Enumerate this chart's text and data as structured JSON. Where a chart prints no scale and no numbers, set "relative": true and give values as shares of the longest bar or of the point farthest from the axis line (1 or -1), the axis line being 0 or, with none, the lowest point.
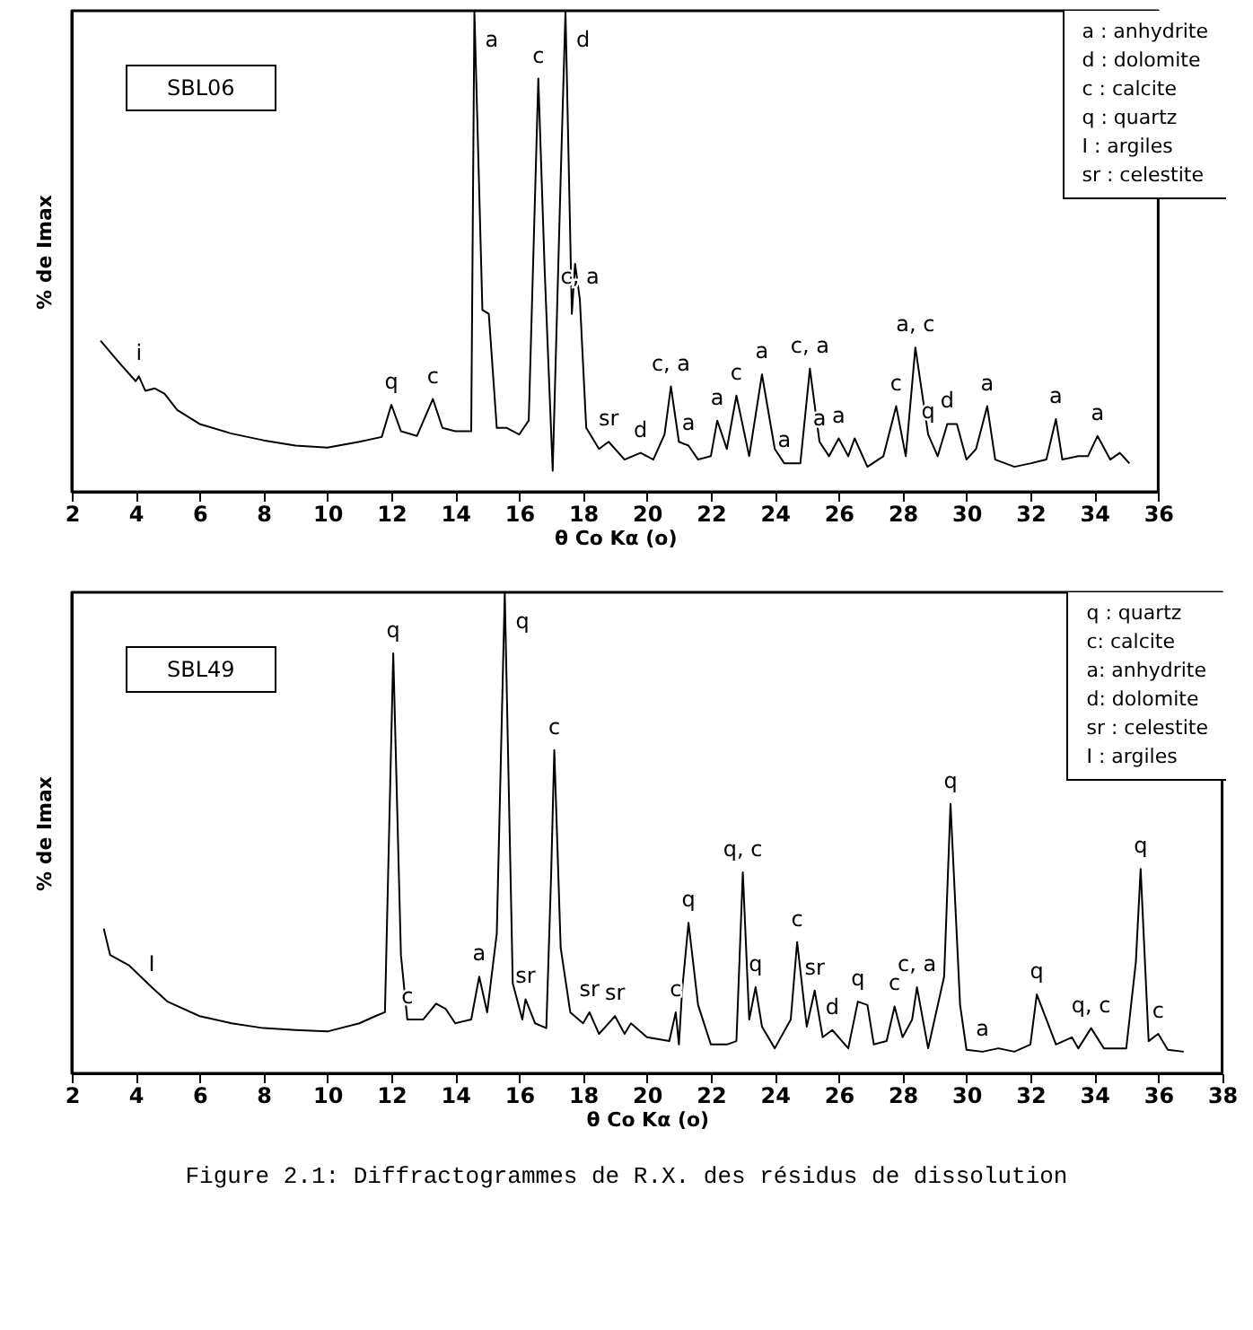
{
  "chart_data": [
    {
      "type": "line",
      "title": "SBL06",
      "xlabel": "θ Co Kα (o)",
      "ylabel": "% de Imax",
      "relative": true,
      "xlim": [
        2,
        36
      ],
      "xticks": [
        2,
        4,
        6,
        8,
        10,
        12,
        14,
        16,
        18,
        20,
        22,
        24,
        26,
        28,
        30,
        32,
        34,
        36
      ],
      "x": [
        2.9,
        3.5,
        4.0,
        4.1,
        4.3,
        4.6,
        4.9,
        5.3,
        6,
        7,
        8,
        9,
        10,
        11,
        11.7,
        12.0,
        12.3,
        12.8,
        13.3,
        13.6,
        14.0,
        14.5,
        14.6,
        14.85,
        15.05,
        15.3,
        15.6,
        16.0,
        16.3,
        16.6,
        16.8,
        17.05,
        17.3,
        17.45,
        17.65,
        17.75,
        17.9,
        18.1,
        18.5,
        18.8,
        19.3,
        19.8,
        20.2,
        20.55,
        20.75,
        21.0,
        21.3,
        21.6,
        22.0,
        22.2,
        22.5,
        22.8,
        23.2,
        23.6,
        24.0,
        24.3,
        24.8,
        25.1,
        25.4,
        25.7,
        26.0,
        26.3,
        26.5,
        26.9,
        27.4,
        27.8,
        28.1,
        28.4,
        28.8,
        29.1,
        29.4,
        29.7,
        30.0,
        30.3,
        30.65,
        30.9,
        31.5,
        32.0,
        32.5,
        32.8,
        33.0,
        33.5,
        33.8,
        34.1,
        34.5,
        34.8,
        35.1
      ],
      "series": [
        {
          "color": "#000000",
          "values": [
            0.314,
            0.267,
            0.23,
            0.24,
            0.21,
            0.215,
            0.204,
            0.17,
            0.141,
            0.121,
            0.107,
            0.096,
            0.092,
            0.104,
            0.114,
            0.181,
            0.126,
            0.116,
            0.193,
            0.133,
            0.126,
            0.126,
            1,
            0.378,
            0.37,
            0.133,
            0.133,
            0.119,
            0.148,
            0.859,
            0.459,
            0.044,
            0.652,
            1,
            0.37,
            0.474,
            0.4,
            0.133,
            0.089,
            0.104,
            0.067,
            0.081,
            0.067,
            0.119,
            0.219,
            0.104,
            0.096,
            0.067,
            0.074,
            0.148,
            0.089,
            0.2,
            0.074,
            0.244,
            0.089,
            0.059,
            0.059,
            0.256,
            0.104,
            0.074,
            0.111,
            0.074,
            0.111,
            0.052,
            0.074,
            0.178,
            0.074,
            0.3,
            0.119,
            0.074,
            0.141,
            0.141,
            0.067,
            0.089,
            0.178,
            0.067,
            0.052,
            0.059,
            0.067,
            0.151,
            0.067,
            0.074,
            0.074,
            0.116,
            0.067,
            0.081,
            0.059
          ]
        }
      ],
      "annotations": [
        "a : anhydrite\nd : dolomite\nc : calcite\nq : quartz\nI : argiles\nsr : celestite",
        {
          "text": "i",
          "x": 4.1,
          "y": 0.24
        },
        {
          "text": "q",
          "x": 12.0,
          "y": 0.181
        },
        {
          "text": "c",
          "x": 13.3,
          "y": 0.193
        },
        {
          "text": "a",
          "x": 14.6,
          "y": 1
        },
        {
          "text": "c",
          "x": 16.6,
          "y": 0.859
        },
        {
          "text": "d",
          "x": 17.45,
          "y": 1
        },
        {
          "text": "c, a",
          "x": 17.9,
          "y": 0.4
        },
        {
          "text": "sr",
          "x": 18.8,
          "y": 0.104
        },
        {
          "text": "d",
          "x": 19.8,
          "y": 0.081
        },
        {
          "text": "c, a",
          "x": 20.75,
          "y": 0.219
        },
        {
          "text": "a",
          "x": 21.3,
          "y": 0.096
        },
        {
          "text": "a",
          "x": 22.2,
          "y": 0.148
        },
        {
          "text": "c",
          "x": 22.8,
          "y": 0.2
        },
        {
          "text": "a",
          "x": 23.6,
          "y": 0.244
        },
        {
          "text": "a",
          "x": 24.3,
          "y": 0.059
        },
        {
          "text": "c, a",
          "x": 25.1,
          "y": 0.256
        },
        {
          "text": "a",
          "x": 25.4,
          "y": 0.104
        },
        {
          "text": "a",
          "x": 26.0,
          "y": 0.111
        },
        {
          "text": "c",
          "x": 27.8,
          "y": 0.178
        },
        {
          "text": "a, c",
          "x": 28.4,
          "y": 0.3
        },
        {
          "text": "q",
          "x": 28.8,
          "y": 0.119
        },
        {
          "text": "d",
          "x": 29.4,
          "y": 0.141
        },
        {
          "text": "a",
          "x": 30.65,
          "y": 0.178
        },
        {
          "text": "a",
          "x": 32.8,
          "y": 0.151
        },
        {
          "text": "a",
          "x": 34.1,
          "y": 0.116
        }
      ]
    },
    {
      "type": "line",
      "title": "SBL49",
      "xlabel": "θ Co Kα (o)",
      "ylabel": "% de Imax",
      "relative": true,
      "xlim": [
        2,
        38
      ],
      "xticks": [
        2,
        4,
        6,
        8,
        10,
        12,
        14,
        16,
        18,
        20,
        22,
        24,
        26,
        28,
        30,
        32,
        34,
        36,
        38
      ],
      "x": [
        3.0,
        3.2,
        3.8,
        4.5,
        5.0,
        6,
        7,
        8,
        9,
        10,
        11,
        11.5,
        11.8,
        12.06,
        12.3,
        12.5,
        13.0,
        13.4,
        13.7,
        14.0,
        14.5,
        14.75,
        15.0,
        15.3,
        15.55,
        15.8,
        16.1,
        16.2,
        16.5,
        16.85,
        17.0,
        17.1,
        17.3,
        17.6,
        18.0,
        18.2,
        18.5,
        19.0,
        19.3,
        19.5,
        20.0,
        20.7,
        20.9,
        21.0,
        21.1,
        21.3,
        21.6,
        22.0,
        22.5,
        22.8,
        23.0,
        23.2,
        23.4,
        23.6,
        24.0,
        24.5,
        24.7,
        25.0,
        25.25,
        25.5,
        25.8,
        26.3,
        26.6,
        26.9,
        27.1,
        27.5,
        27.75,
        28.0,
        28.3,
        28.45,
        28.8,
        29.3,
        29.5,
        29.8,
        30.0,
        30.5,
        31.0,
        31.5,
        32.0,
        32.2,
        32.5,
        32.8,
        33.3,
        33.5,
        33.9,
        34.3,
        35.0,
        35.3,
        35.45,
        35.7,
        36.0,
        36.3,
        36.8
      ],
      "series": [
        {
          "color": "#000000",
          "values": [
            0.301,
            0.246,
            0.224,
            0.179,
            0.149,
            0.119,
            0.104,
            0.094,
            0.09,
            0.087,
            0.104,
            0.119,
            0.127,
            0.873,
            0.246,
            0.112,
            0.112,
            0.145,
            0.134,
            0.104,
            0.112,
            0.201,
            0.127,
            0.291,
            1,
            0.187,
            0.112,
            0.154,
            0.104,
            0.094,
            0.41,
            0.672,
            0.261,
            0.127,
            0.104,
            0.127,
            0.082,
            0.119,
            0.082,
            0.104,
            0.075,
            0.067,
            0.127,
            0.06,
            0.172,
            0.313,
            0.142,
            0.06,
            0.06,
            0.067,
            0.418,
            0.112,
            0.179,
            0.097,
            0.052,
            0.112,
            0.273,
            0.097,
            0.172,
            0.075,
            0.09,
            0.052,
            0.149,
            0.142,
            0.06,
            0.067,
            0.139,
            0.075,
            0.112,
            0.179,
            0.052,
            0.201,
            0.56,
            0.142,
            0.049,
            0.045,
            0.052,
            0.045,
            0.06,
            0.164,
            0.112,
            0.06,
            0.075,
            0.052,
            0.094,
            0.052,
            0.052,
            0.231,
            0.425,
            0.067,
            0.082,
            0.049,
            0.045
          ]
        }
      ],
      "annotations": [
        "q : quartz\nc: calcite\na: anhydrite\nd: dolomite\nsr : celestite\nI : argiles",
        "Figure 2.1: Diffractogrammes de R.X. des résidus de dissolution",
        {
          "text": "I",
          "x": 4.5,
          "y": 0.179
        },
        {
          "text": "q",
          "x": 12.06,
          "y": 0.873
        },
        {
          "text": "c",
          "x": 12.5,
          "y": 0.112
        },
        {
          "text": "a",
          "x": 14.75,
          "y": 0.201
        },
        {
          "text": "q",
          "x": 15.55,
          "y": 1
        },
        {
          "text": "sr",
          "x": 16.2,
          "y": 0.154
        },
        {
          "text": "c",
          "x": 17.1,
          "y": 0.672
        },
        {
          "text": "sr",
          "x": 18.2,
          "y": 0.127
        },
        {
          "text": "sr",
          "x": 19.0,
          "y": 0.119
        },
        {
          "text": "q",
          "x": 21.3,
          "y": 0.313
        },
        {
          "text": "c",
          "x": 20.9,
          "y": 0.127
        },
        {
          "text": "q, c",
          "x": 23.0,
          "y": 0.418
        },
        {
          "text": "q",
          "x": 23.4,
          "y": 0.179
        },
        {
          "text": "c",
          "x": 24.7,
          "y": 0.273
        },
        {
          "text": "sr",
          "x": 25.25,
          "y": 0.172
        },
        {
          "text": "d",
          "x": 25.8,
          "y": 0.09
        },
        {
          "text": "q",
          "x": 26.6,
          "y": 0.149
        },
        {
          "text": "c",
          "x": 27.75,
          "y": 0.139
        },
        {
          "text": "c, a",
          "x": 28.45,
          "y": 0.179
        },
        {
          "text": "q",
          "x": 29.5,
          "y": 0.56
        },
        {
          "text": "a",
          "x": 30.5,
          "y": 0.045
        },
        {
          "text": "q",
          "x": 32.2,
          "y": 0.164
        },
        {
          "text": "q, c",
          "x": 33.9,
          "y": 0.094
        },
        {
          "text": "q",
          "x": 35.45,
          "y": 0.425
        },
        {
          "text": "c",
          "x": 36.0,
          "y": 0.082
        }
      ]
    }
  ]
}
